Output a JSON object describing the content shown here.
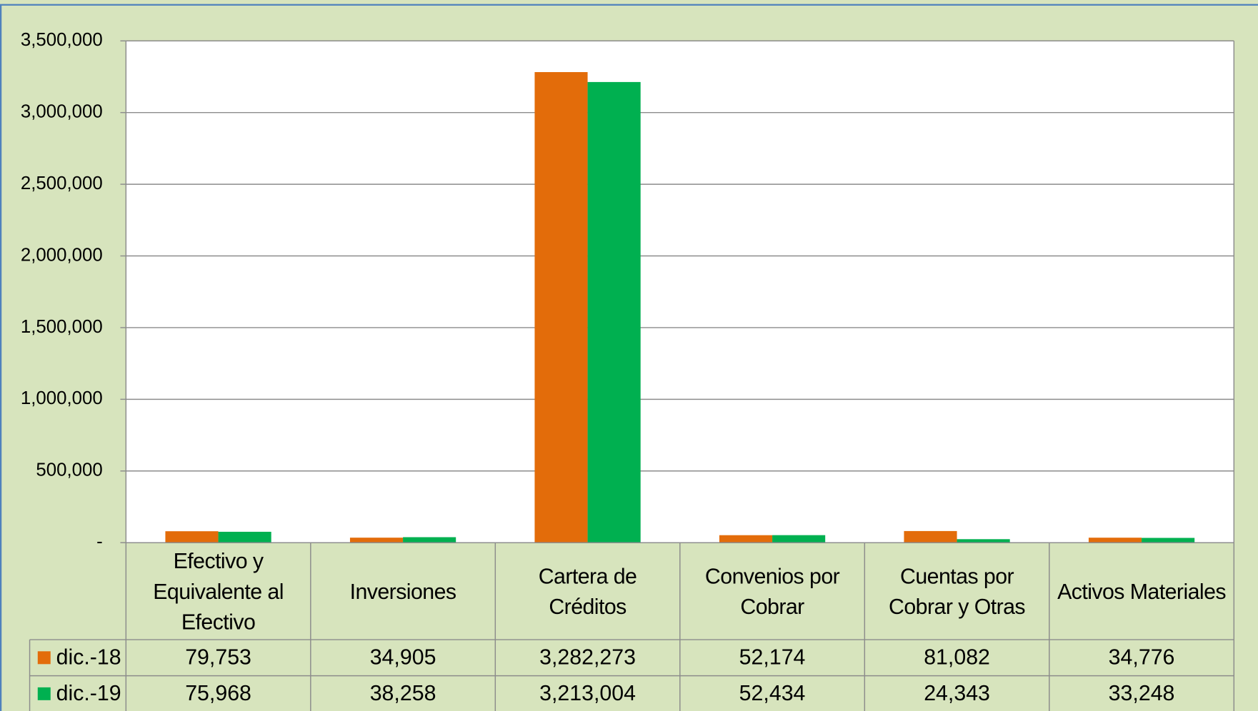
{
  "chart_data": {
    "type": "bar",
    "categories": [
      "Efectivo y Equivalente al Efectivo",
      "Inversiones",
      "Cartera de Créditos",
      "Convenios por Cobrar",
      "Cuentas por Cobrar y Otras",
      "Activos Materiales"
    ],
    "series": [
      {
        "name": "dic.-18",
        "color": "#e36c0a",
        "values": [
          79753,
          34905,
          3282273,
          52174,
          81082,
          34776
        ],
        "value_labels": [
          "79,753",
          "34,905",
          "3,282,273",
          "52,174",
          "81,082",
          "34,776"
        ]
      },
      {
        "name": "dic.-19",
        "color": "#00b050",
        "values": [
          75968,
          38258,
          3213004,
          52434,
          24343,
          33248
        ],
        "value_labels": [
          "75,968",
          "38,258",
          "3,213,004",
          "52,434",
          "24,343",
          "33,248"
        ]
      }
    ],
    "ylim": [
      0,
      3500000
    ],
    "yticks": [
      {
        "value": 0,
        "label": "-"
      },
      {
        "value": 500000,
        "label": "500,000"
      },
      {
        "value": 1000000,
        "label": "1,000,000"
      },
      {
        "value": 1500000,
        "label": "1,500,000"
      },
      {
        "value": 2000000,
        "label": "2,000,000"
      },
      {
        "value": 2500000,
        "label": "2,500,000"
      },
      {
        "value": 3000000,
        "label": "3,000,000"
      },
      {
        "value": 3500000,
        "label": "3,500,000"
      }
    ],
    "grid": true
  }
}
